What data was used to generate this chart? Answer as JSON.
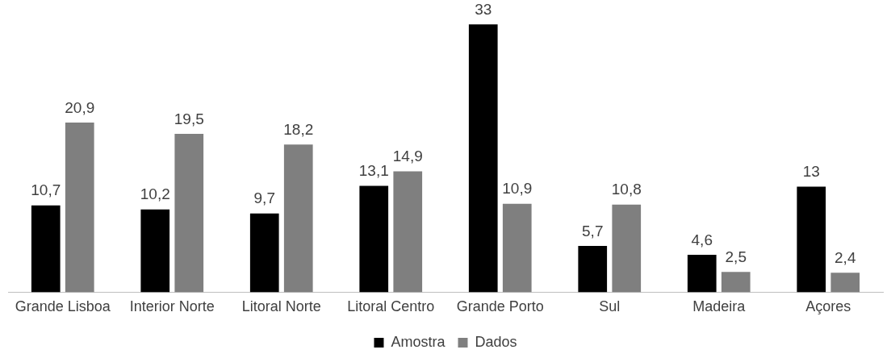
{
  "chart_data": {
    "type": "bar",
    "categories": [
      "Grande Lisboa",
      "Interior Norte",
      "Litoral Norte",
      "Litoral Centro",
      "Grande Porto",
      "Sul",
      "Madeira",
      "Açores"
    ],
    "series": [
      {
        "name": "Amostra",
        "color": "#000000",
        "values": [
          10.7,
          10.2,
          9.7,
          13.1,
          33,
          5.7,
          4.6,
          13
        ],
        "value_labels": [
          "10,7",
          "10,2",
          "9,7",
          "13,1",
          "33",
          "5,7",
          "4,6",
          "13"
        ]
      },
      {
        "name": "Dados",
        "color": "#7f7f7f",
        "values": [
          20.9,
          19.5,
          18.2,
          14.9,
          10.9,
          10.8,
          2.5,
          2.4
        ],
        "value_labels": [
          "20,9",
          "19,5",
          "18,2",
          "14,9",
          "10,9",
          "10,8",
          "2,5",
          "2,4"
        ]
      }
    ],
    "grid": false,
    "legend": "bottom"
  }
}
